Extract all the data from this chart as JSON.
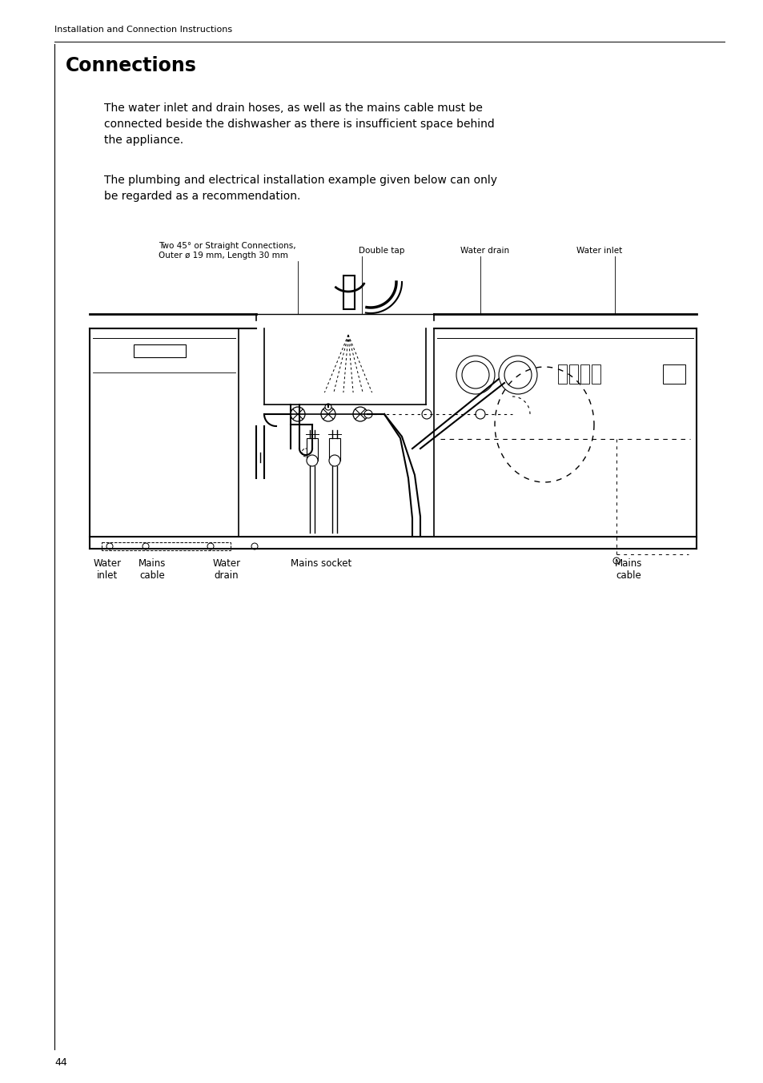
{
  "page_header": "Installation and Connection Instructions",
  "section_title": "Connections",
  "para1": "The water inlet and drain hoses, as well as the mains cable must be\nconnected beside the dishwasher as there is insufficient space behind\nthe appliance.",
  "para2": "The plumbing and electrical installation example given below can only\nbe regarded as a recommendation.",
  "label_top_left_1": "Two 45° or Straight Connections,",
  "label_top_left_2": "Outer ø 19 mm, Length 30 mm",
  "label_double_tap": "Double tap",
  "label_water_drain_top": "Water drain",
  "label_water_inlet_top": "Water inlet",
  "label_water_inlet_bot": "Water\ninlet",
  "label_mains_cable_bot": "Mains\ncable",
  "label_water_drain_bot": "Water\ndrain",
  "label_mains_socket": "Mains socket",
  "label_mains_cable_right": "Mains\ncable",
  "page_number": "44",
  "bg_color": "#ffffff",
  "text_color": "#000000",
  "line_color": "#000000"
}
